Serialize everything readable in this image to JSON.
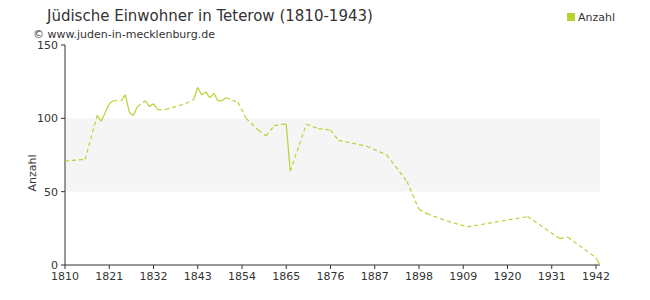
{
  "chart_data": {
    "type": "line",
    "title": "Jüdische Einwohner in Teterow (1810-1943)",
    "subtitle": "© www.juden-in-mecklenburg.de",
    "y_label": "Anzahl",
    "x": [
      1810,
      1815,
      1818,
      1819,
      1820,
      1821,
      1822,
      1824,
      1825,
      1826,
      1827,
      1828,
      1830,
      1831,
      1832,
      1833,
      1835,
      1840,
      1842,
      1843,
      1844,
      1845,
      1846,
      1847,
      1848,
      1849,
      1850,
      1853,
      1855,
      1858,
      1860,
      1862,
      1864,
      1865,
      1866,
      1870,
      1873,
      1876,
      1878,
      1885,
      1890,
      1895,
      1898,
      1900,
      1905,
      1910,
      1925,
      1933,
      1935,
      1942,
      1943
    ],
    "series": [
      {
        "name": "Anzahl",
        "color": "#b5d334",
        "values": [
          71,
          72,
          102,
          98,
          104,
          110,
          112,
          112,
          116,
          104,
          102,
          108,
          112,
          108,
          110,
          106,
          106,
          110,
          113,
          121,
          116,
          118,
          114,
          117,
          112,
          112,
          114,
          111,
          100,
          92,
          88,
          95,
          96,
          96,
          64,
          96,
          93,
          92,
          85,
          81,
          75,
          57,
          38,
          35,
          30,
          26,
          33,
          18,
          19,
          5,
          0
        ]
      }
    ],
    "xlim": [
      1810,
      1943
    ],
    "xticks": [
      1810,
      1821,
      1832,
      1843,
      1854,
      1865,
      1876,
      1887,
      1898,
      1909,
      1920,
      1931,
      1942
    ],
    "ylim": [
      0,
      150
    ],
    "yticks": [
      0,
      50,
      100,
      150
    ],
    "grid": true,
    "legend": "top-right"
  }
}
